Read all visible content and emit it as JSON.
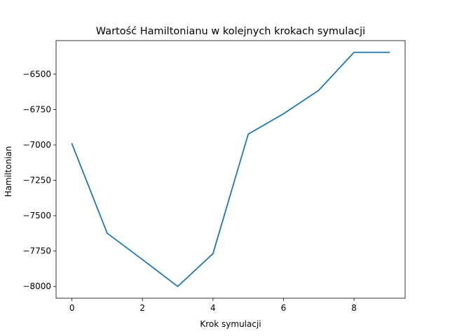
{
  "chart_data": {
    "type": "line",
    "title": "Wartość Hamiltonianu w kolejnych krokach symulacji",
    "xlabel": "Krok symulacji",
    "ylabel": "Hamiltonian",
    "x": [
      0,
      1,
      2,
      3,
      4,
      5,
      6,
      7,
      8,
      9
    ],
    "series": [
      {
        "values": [
          -6992,
          -7624,
          -7810,
          -8000,
          -7768,
          -6924,
          -6780,
          -6614,
          -6346,
          -6346
        ],
        "color": "#1f77b4"
      }
    ],
    "xlim": [
      -0.45,
      9.45
    ],
    "ylim": [
      -8083,
      -6263
    ],
    "xticks": [
      0,
      2,
      4,
      6,
      8
    ],
    "yticks": [
      -8000,
      -7750,
      -7500,
      -7250,
      -7000,
      -6750,
      -6500
    ],
    "ytick_labels": [
      "−8000",
      "−7750",
      "−7500",
      "−7250",
      "−7000",
      "−6750",
      "−6500"
    ],
    "grid": false
  }
}
